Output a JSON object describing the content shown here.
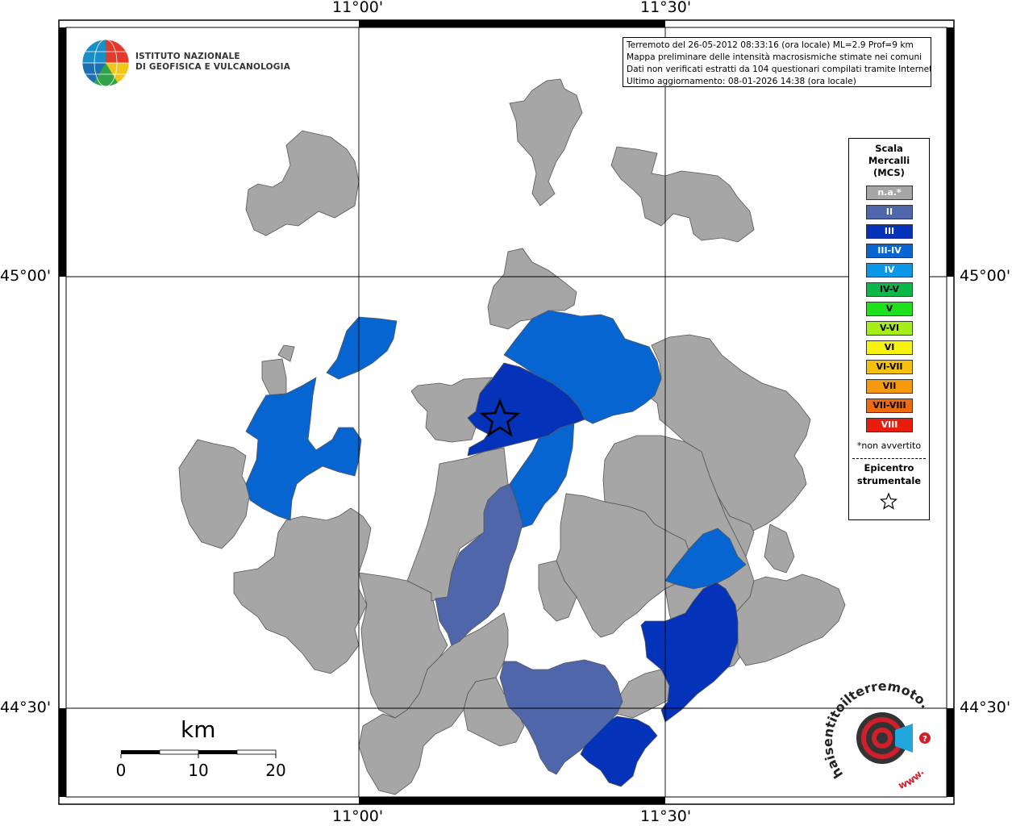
{
  "info": {
    "line1": "Terremoto del 26-05-2012 08:33:16 (ora locale) ML=2.9 Prof=9 km",
    "line2": "Mappa preliminare delle intensità macrosismiche stimate nei comuni",
    "line3": "Dati non verificati estratti da 104 questionari compilati tramite Internet.",
    "line4": "Ultimo aggiornamento: 08-01-2026 14:38 (ora locale)"
  },
  "logo": {
    "line1": "ISTITUTO NAZIONALE",
    "line2": "DI GEOFISICA E VULCANOLOGIA"
  },
  "axes": {
    "top_left": "11°00'",
    "top_right": "11°30'",
    "bottom_left": "11°00'",
    "bottom_right": "11°30'",
    "left_top": "45°00'",
    "left_bottom": "44°30'",
    "right_top": "45°00'",
    "right_bottom": "44°30'"
  },
  "scalebar": {
    "unit": "km",
    "tick0": "0",
    "tick1": "10",
    "tick2": "20"
  },
  "legend": {
    "title1": "Scala",
    "title2": "Mercalli",
    "title3": "(MCS)",
    "items": [
      {
        "label": "n.a.*",
        "color": "#a6a6a6",
        "text_color": "#ffffff"
      },
      {
        "label": "II",
        "color": "#4f67aa",
        "text_color": "#ffffff"
      },
      {
        "label": "III",
        "color": "#0433b9",
        "text_color": "#ffffff"
      },
      {
        "label": "III-IV",
        "color": "#0765d2",
        "text_color": "#ffffff"
      },
      {
        "label": "IV",
        "color": "#0a97e8",
        "text_color": "#ffffff"
      },
      {
        "label": "IV-V",
        "color": "#09b848",
        "text_color": "#000000"
      },
      {
        "label": "V",
        "color": "#1de11d",
        "text_color": "#000000"
      },
      {
        "label": "V-VI",
        "color": "#a6ee18",
        "text_color": "#000000"
      },
      {
        "label": "VI",
        "color": "#f7f20e",
        "text_color": "#000000"
      },
      {
        "label": "VI-VII",
        "color": "#f6c10d",
        "text_color": "#000000"
      },
      {
        "label": "VII",
        "color": "#f59a0b",
        "text_color": "#000000"
      },
      {
        "label": "VII-VIII",
        "color": "#ef6a0c",
        "text_color": "#000000"
      },
      {
        "label": "VIII",
        "color": "#ea1c0d",
        "text_color": "#ffffff"
      }
    ],
    "note": "*non avvertito",
    "epi1": "Epicentro",
    "epi2": "strumentale"
  },
  "badge": {
    "text_main": "haisentitoilterremoto.it",
    "text_www": "www."
  },
  "colors": {
    "na": "#a6a6a6",
    "ii": "#4f67aa",
    "iii": "#0433b9",
    "iiiiv": "#0765d2",
    "border": "#444444"
  }
}
